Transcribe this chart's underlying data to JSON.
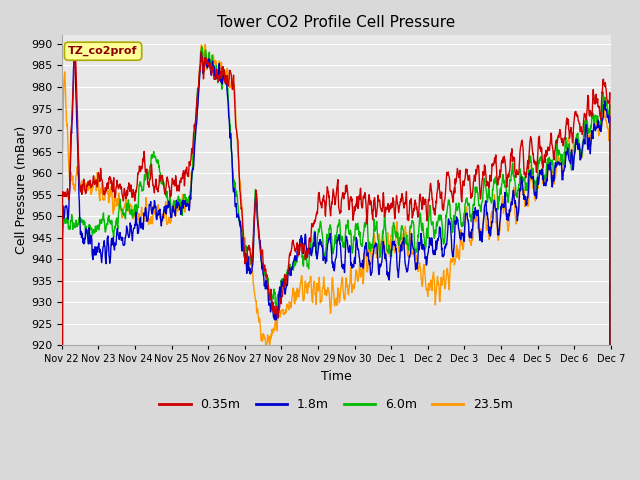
{
  "title": "Tower CO2 Profile Cell Pressure",
  "xlabel": "Time",
  "ylabel": "Cell Pressure (mBar)",
  "ylim": [
    920,
    992
  ],
  "yticks": [
    920,
    925,
    930,
    935,
    940,
    945,
    950,
    955,
    960,
    965,
    970,
    975,
    980,
    985,
    990
  ],
  "legend_labels": [
    "0.35m",
    "1.8m",
    "6.0m",
    "23.5m"
  ],
  "legend_colors": [
    "#cc0000",
    "#0000cc",
    "#00bb00",
    "#ff9900"
  ],
  "annotation_text": "TZ_co2prof",
  "annotation_bg": "#ffff99",
  "annotation_edge": "#cccc00",
  "fig_bg": "#d9d9d9",
  "plot_bg": "#e8e8e8",
  "grid_color": "#ffffff",
  "xtick_labels": [
    "Nov 22",
    "Nov 23",
    "Nov 24",
    "Nov 25",
    "Nov 26",
    "Nov 27",
    "Nov 28",
    "Nov 29",
    "Nov 30",
    "Dec 1",
    "Dec 2",
    "Dec 3",
    "Dec 4",
    "Dec 5",
    "Dec 6",
    "Dec 7"
  ]
}
